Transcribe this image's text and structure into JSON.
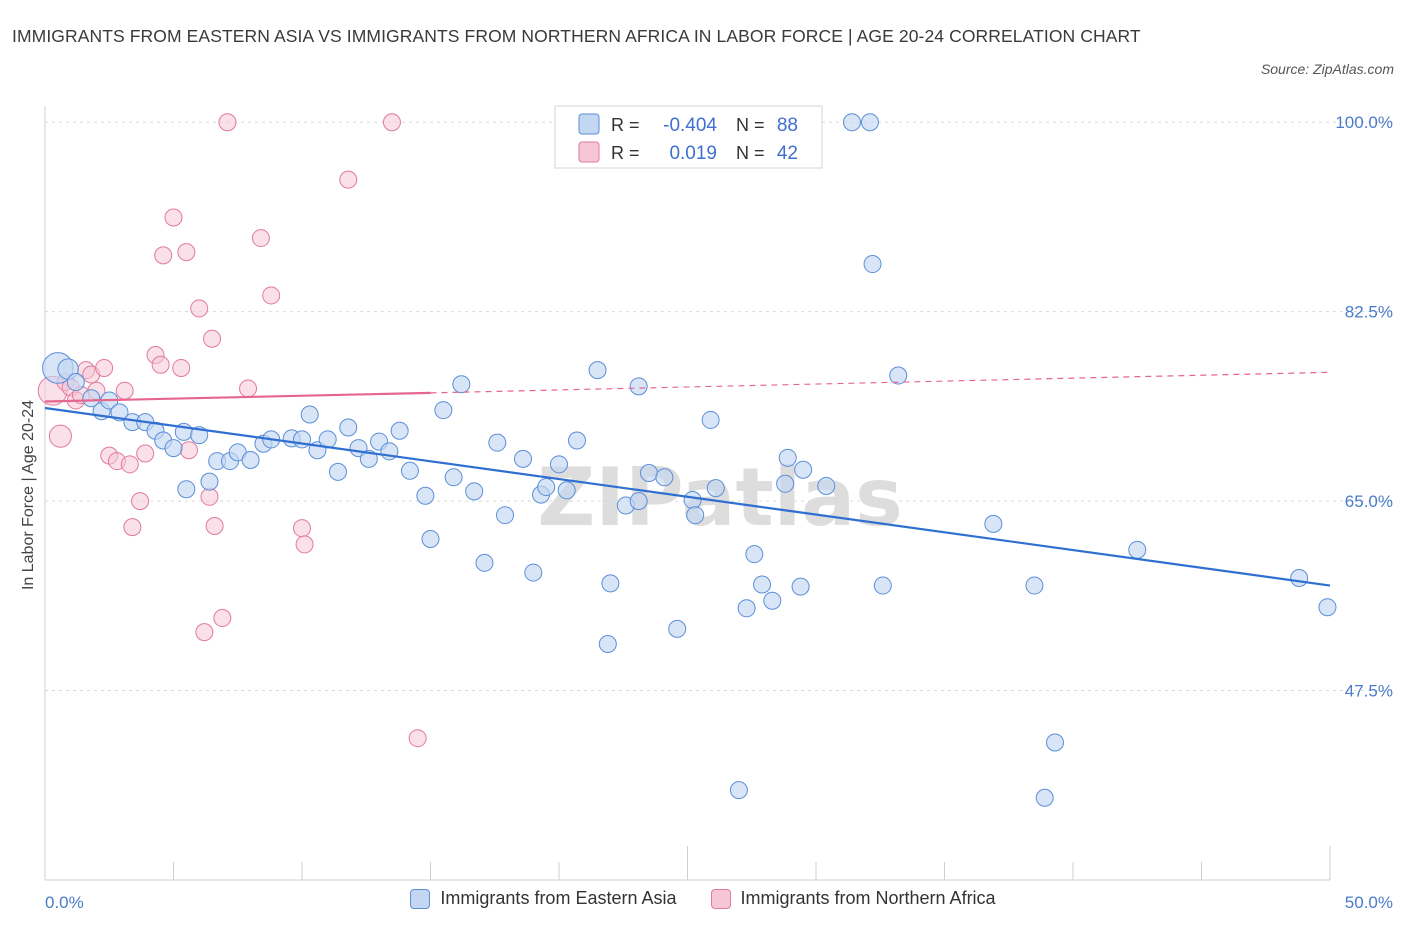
{
  "title": "IMMIGRANTS FROM EASTERN ASIA VS IMMIGRANTS FROM NORTHERN AFRICA IN LABOR FORCE | AGE 20-24 CORRELATION CHART",
  "source": "Source: ZipAtlas.com",
  "watermark": "ZIPatlas",
  "colors": {
    "blue": "#5b8fd8",
    "blue_fill": "#c3d7f3",
    "blue_line": "#2f6fd1",
    "pink": "#e27a9c",
    "pink_fill": "#f6c6d6",
    "pink_line": "#e5678f",
    "grid": "#d9d9d9",
    "axis_text": "#4a7cc9"
  },
  "legend": {
    "blue": {
      "r_label": "R =",
      "r_value": "-0.404",
      "n_label": "N =",
      "n_value": "88"
    },
    "pink": {
      "r_label": "R =",
      "r_value": "0.019",
      "n_label": "N =",
      "n_value": "42"
    }
  },
  "chart_data": {
    "type": "scatter",
    "title": "IMMIGRANTS FROM EASTERN ASIA VS IMMIGRANTS FROM NORTHERN AFRICA IN LABOR FORCE | AGE 20-24 CORRELATION CHART",
    "xlabel": "",
    "ylabel": "In Labor Force | Age 20-24",
    "xlim": [
      0,
      50
    ],
    "ylim": [
      30,
      101.5
    ],
    "y_ticks": [
      100.0,
      82.5,
      65.0,
      47.5
    ],
    "y_tick_labels": [
      "100.0%",
      "82.5%",
      "65.0%",
      "47.5%"
    ],
    "x_tick_labels": [
      "0.0%",
      "50.0%"
    ],
    "grid": true,
    "series": [
      {
        "name": "Immigrants from Eastern Asia",
        "color": "#5b8fd8",
        "trend": {
          "x": [
            0,
            50
          ],
          "y": [
            73.6,
            57.2
          ],
          "dashed_from": null
        },
        "points": [
          [
            0.5,
            77.3,
            1.8
          ],
          [
            0.9,
            77.2,
            1.2
          ],
          [
            1.2,
            76.0,
            1.0
          ],
          [
            1.8,
            74.5,
            1.0
          ],
          [
            2.2,
            73.3,
            1.0
          ],
          [
            2.5,
            74.3,
            1.0
          ],
          [
            2.9,
            73.2,
            1.0
          ],
          [
            3.4,
            72.3,
            1.0
          ],
          [
            3.9,
            72.3,
            1.0
          ],
          [
            4.3,
            71.5,
            1.0
          ],
          [
            4.6,
            70.6,
            1.0
          ],
          [
            5.0,
            69.9,
            1.0
          ],
          [
            5.4,
            71.4,
            1.0
          ],
          [
            5.5,
            66.1,
            1.0
          ],
          [
            6.0,
            71.1,
            1.0
          ],
          [
            6.4,
            66.8,
            1.0
          ],
          [
            6.7,
            68.7,
            1.0
          ],
          [
            7.2,
            68.7,
            1.0
          ],
          [
            7.5,
            69.5,
            1.0
          ],
          [
            8.0,
            68.8,
            1.0
          ],
          [
            8.5,
            70.3,
            1.0
          ],
          [
            8.8,
            70.7,
            1.0
          ],
          [
            9.6,
            70.8,
            1.0
          ],
          [
            10.0,
            70.7,
            1.0
          ],
          [
            10.3,
            73.0,
            1.0
          ],
          [
            10.6,
            69.7,
            1.0
          ],
          [
            11.0,
            70.7,
            1.0
          ],
          [
            11.4,
            67.7,
            1.0
          ],
          [
            11.8,
            71.8,
            1.0
          ],
          [
            12.2,
            69.9,
            1.0
          ],
          [
            12.6,
            68.9,
            1.0
          ],
          [
            13.0,
            70.5,
            1.0
          ],
          [
            13.4,
            69.6,
            1.0
          ],
          [
            13.8,
            71.5,
            1.0
          ],
          [
            14.2,
            67.8,
            1.0
          ],
          [
            14.8,
            65.5,
            1.0
          ],
          [
            15.0,
            61.5,
            1.0
          ],
          [
            15.5,
            73.4,
            1.0
          ],
          [
            15.9,
            67.2,
            1.0
          ],
          [
            16.2,
            75.8,
            1.0
          ],
          [
            16.7,
            65.9,
            1.0
          ],
          [
            17.1,
            59.3,
            1.0
          ],
          [
            17.6,
            70.4,
            1.0
          ],
          [
            17.9,
            63.7,
            1.0
          ],
          [
            18.6,
            68.9,
            1.0
          ],
          [
            19.0,
            58.4,
            1.0
          ],
          [
            19.3,
            65.6,
            1.0
          ],
          [
            19.5,
            66.3,
            1.0
          ],
          [
            20.0,
            68.4,
            1.0
          ],
          [
            20.3,
            66.0,
            1.0
          ],
          [
            20.7,
            70.6,
            1.0
          ],
          [
            21.5,
            77.1,
            1.0
          ],
          [
            21.9,
            51.8,
            1.0
          ],
          [
            22.0,
            57.4,
            1.0
          ],
          [
            22.6,
            64.6,
            1.0
          ],
          [
            23.1,
            75.6,
            1.0
          ],
          [
            23.1,
            65.0,
            1.0
          ],
          [
            23.5,
            67.6,
            1.0
          ],
          [
            24.1,
            67.2,
            1.0
          ],
          [
            24.6,
            53.2,
            1.0
          ],
          [
            25.2,
            65.1,
            1.0
          ],
          [
            25.3,
            63.7,
            1.0
          ],
          [
            25.9,
            72.5,
            1.0
          ],
          [
            26.1,
            66.2,
            1.0
          ],
          [
            27.0,
            38.3,
            1.0
          ],
          [
            27.3,
            55.1,
            1.0
          ],
          [
            27.6,
            60.1,
            1.0
          ],
          [
            27.9,
            57.3,
            1.0
          ],
          [
            28.3,
            55.8,
            1.0
          ],
          [
            28.8,
            66.6,
            1.0
          ],
          [
            28.9,
            69.0,
            1.0
          ],
          [
            29.4,
            57.1,
            1.0
          ],
          [
            29.5,
            67.9,
            1.0
          ],
          [
            30.4,
            66.4,
            1.0
          ],
          [
            31.4,
            100.0,
            1.0
          ],
          [
            32.1,
            100.0,
            1.0
          ],
          [
            32.2,
            86.9,
            1.0
          ],
          [
            32.6,
            57.2,
            1.0
          ],
          [
            33.2,
            76.6,
            1.0
          ],
          [
            36.9,
            62.9,
            1.0
          ],
          [
            38.5,
            57.2,
            1.0
          ],
          [
            38.9,
            37.6,
            1.0
          ],
          [
            39.3,
            42.7,
            1.0
          ],
          [
            42.5,
            60.5,
            1.0
          ],
          [
            48.8,
            57.9,
            1.0
          ],
          [
            49.9,
            55.2,
            1.0
          ]
        ]
      },
      {
        "name": "Immigrants from Northern Africa",
        "color": "#e27a9c",
        "trend": {
          "x": [
            0,
            15
          ],
          "y": [
            74.2,
            75.0
          ],
          "dashed_from": 15,
          "dashed_end": [
            50,
            76.9
          ]
        },
        "points": [
          [
            0.3,
            75.2,
            1.7
          ],
          [
            0.6,
            71.0,
            1.3
          ],
          [
            0.8,
            76.0,
            1.0
          ],
          [
            1.0,
            75.5,
            1.0
          ],
          [
            1.2,
            74.3,
            1.0
          ],
          [
            1.4,
            74.8,
            1.0
          ],
          [
            1.6,
            77.1,
            1.0
          ],
          [
            1.8,
            76.7,
            1.0
          ],
          [
            2.0,
            75.2,
            1.0
          ],
          [
            2.3,
            77.3,
            1.0
          ],
          [
            2.5,
            69.2,
            1.0
          ],
          [
            2.8,
            68.7,
            1.0
          ],
          [
            3.1,
            75.2,
            1.0
          ],
          [
            3.3,
            68.4,
            1.0
          ],
          [
            3.4,
            62.6,
            1.0
          ],
          [
            3.7,
            65.0,
            1.0
          ],
          [
            3.9,
            69.4,
            1.0
          ],
          [
            4.3,
            78.5,
            1.0
          ],
          [
            4.5,
            77.6,
            1.0
          ],
          [
            4.6,
            87.7,
            1.0
          ],
          [
            5.0,
            91.2,
            1.0
          ],
          [
            5.3,
            77.3,
            1.0
          ],
          [
            5.5,
            88.0,
            1.0
          ],
          [
            5.6,
            69.7,
            1.0
          ],
          [
            6.0,
            82.8,
            1.0
          ],
          [
            6.2,
            52.9,
            1.0
          ],
          [
            6.4,
            65.4,
            1.0
          ],
          [
            6.5,
            80.0,
            1.0
          ],
          [
            6.6,
            62.7,
            1.0
          ],
          [
            6.9,
            54.2,
            1.0
          ],
          [
            7.1,
            100.0,
            1.0
          ],
          [
            7.9,
            75.4,
            1.0
          ],
          [
            8.4,
            89.3,
            1.0
          ],
          [
            8.8,
            84.0,
            1.0
          ],
          [
            10.0,
            62.5,
            1.0
          ],
          [
            10.1,
            61.0,
            1.0
          ],
          [
            11.8,
            94.7,
            1.0
          ],
          [
            13.5,
            100.0,
            1.0
          ],
          [
            14.5,
            43.1,
            1.0
          ]
        ]
      }
    ]
  },
  "bottom_legend": {
    "blue_label": "Immigrants from Eastern Asia",
    "pink_label": "Immigrants from Northern Africa"
  }
}
